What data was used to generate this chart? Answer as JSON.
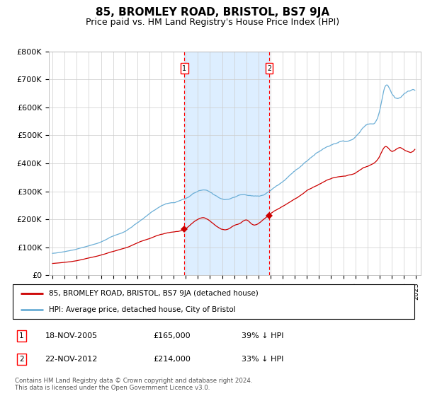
{
  "title": "85, BROMLEY ROAD, BRISTOL, BS7 9JA",
  "subtitle": "Price paid vs. HM Land Registry's House Price Index (HPI)",
  "title_fontsize": 11,
  "subtitle_fontsize": 9,
  "ylim": [
    0,
    800000
  ],
  "yticks": [
    0,
    100000,
    200000,
    300000,
    400000,
    500000,
    600000,
    700000,
    800000
  ],
  "ytick_labels": [
    "£0",
    "£100K",
    "£200K",
    "£300K",
    "£400K",
    "£500K",
    "£600K",
    "£700K",
    "£800K"
  ],
  "hpi_color": "#6baed6",
  "price_color": "#cc0000",
  "shade_color": "#ddeeff",
  "marker1_date": "18-NOV-2005",
  "marker1_price": 165000,
  "marker1_pct": "39%",
  "marker2_date": "22-NOV-2012",
  "marker2_price": 214000,
  "marker2_pct": "33%",
  "legend_label1": "85, BROMLEY ROAD, BRISTOL, BS7 9JA (detached house)",
  "legend_label2": "HPI: Average price, detached house, City of Bristol",
  "footer": "Contains HM Land Registry data © Crown copyright and database right 2024.\nThis data is licensed under the Open Government Licence v3.0.",
  "marker1_x": 2005.88,
  "marker2_x": 2012.88,
  "xlim_left": 1994.7,
  "xlim_right": 2025.4
}
